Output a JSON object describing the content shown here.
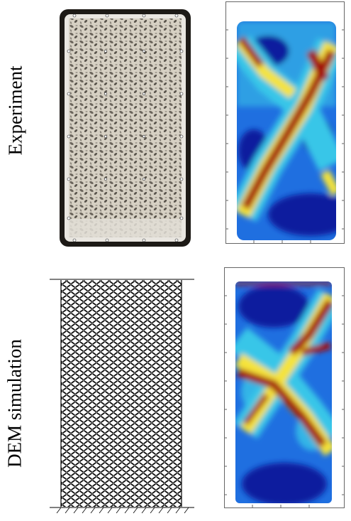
{
  "labels": {
    "experiment": "Experiment",
    "simulation": "DEM simulation"
  },
  "colors": {
    "heat_low": "#0a1e9e",
    "heat_mid_low": "#1f6fe0",
    "heat_mid": "#39c6e8",
    "heat_mid_high": "#f5e33a",
    "heat_high": "#a30a0a",
    "frame_dark": "#1d1a16",
    "grains": "#cfc7b8"
  },
  "icons": {
    "photo": "granular-sample-photo",
    "simulation": "particle-packing",
    "heatmap": "strain-field-map"
  }
}
